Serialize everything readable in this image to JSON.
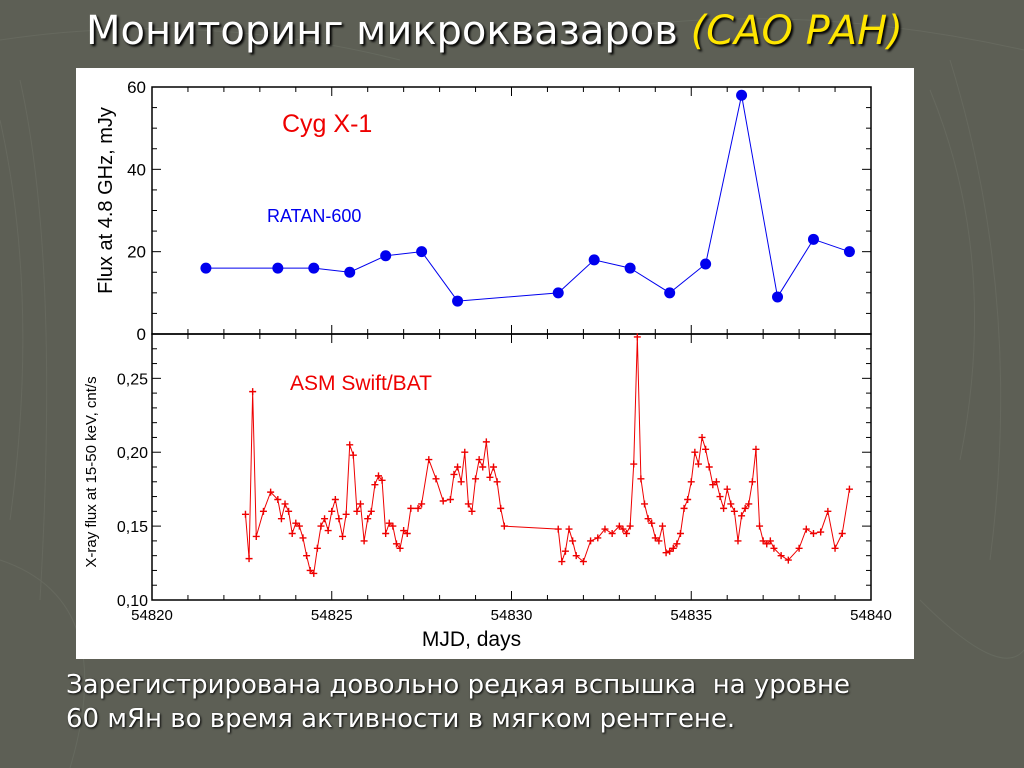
{
  "slide": {
    "title": "Мониторинг микроквазаров",
    "title_org": "(САО РАН)",
    "caption_lines": [
      "Зарегистрирована довольно редкая вспышка  на уровне",
      "60 мЯн во время активности в мягком рентгене."
    ]
  },
  "colors": {
    "background": "#5d5f55",
    "title": "#ffffff",
    "title_org": "#ffe600",
    "radio_series": "#0000ee",
    "xray_series": "#ee0000",
    "source_label": "#ee0000"
  },
  "chart_data": [
    {
      "type": "line",
      "panel": "top",
      "source_label": "Cyg X-1",
      "ylabel": "Flux at 4.8 GHz, mJy",
      "ylim": [
        0,
        60
      ],
      "yticks": [
        0,
        20,
        40,
        60
      ],
      "ytick_labels": [
        "0",
        "20",
        "40",
        "60"
      ],
      "xlim": [
        54820,
        54840
      ],
      "grid": false,
      "series": [
        {
          "name": "RATAN-600",
          "marker": "filled-circle",
          "x": [
            54821.5,
            54823.5,
            54824.5,
            54825.5,
            54826.5,
            54827.5,
            54828.5,
            54831.3,
            54832.3,
            54833.3,
            54834.4,
            54835.4,
            54836.4,
            54837.4,
            54838.4,
            54839.4
          ],
          "y": [
            16,
            16,
            16,
            15,
            19,
            20,
            8,
            10,
            18,
            16,
            10,
            17,
            58,
            9,
            23,
            20
          ]
        }
      ]
    },
    {
      "type": "line",
      "panel": "bottom",
      "ylabel": "X-ray flux at 15-50 keV, cnt/s",
      "xlabel": "MJD, days",
      "ylim": [
        0.1,
        0.28
      ],
      "yticks": [
        0.1,
        0.15,
        0.2,
        0.25
      ],
      "ytick_labels": [
        "0,10",
        "0,15",
        "0,20",
        "0,25"
      ],
      "xlim": [
        54820,
        54840
      ],
      "xticks": [
        54820,
        54825,
        54830,
        54835,
        54840
      ],
      "xtick_labels": [
        "54820",
        "54825",
        "54830",
        "54835",
        "54840"
      ],
      "grid": false,
      "series": [
        {
          "name": "ASM Swift/BAT",
          "marker": "plus",
          "x": [
            54822.6,
            54822.7,
            54822.8,
            54822.9,
            54823.1,
            54823.3,
            54823.5,
            54823.6,
            54823.7,
            54823.8,
            54823.9,
            54824.0,
            54824.1,
            54824.2,
            54824.3,
            54824.4,
            54824.5,
            54824.6,
            54824.7,
            54824.8,
            54824.9,
            54825.0,
            54825.1,
            54825.2,
            54825.3,
            54825.4,
            54825.5,
            54825.6,
            54825.7,
            54825.8,
            54825.9,
            54826.0,
            54826.1,
            54826.2,
            54826.3,
            54826.4,
            54826.5,
            54826.6,
            54826.7,
            54826.8,
            54826.9,
            54827.0,
            54827.1,
            54827.2,
            54827.4,
            54827.5,
            54827.7,
            54827.9,
            54828.1,
            54828.3,
            54828.4,
            54828.5,
            54828.6,
            54828.7,
            54828.8,
            54828.9,
            54829.0,
            54829.1,
            54829.2,
            54829.3,
            54829.4,
            54829.5,
            54829.6,
            54829.7,
            54829.8,
            54831.3,
            54831.4,
            54831.5,
            54831.6,
            54831.7,
            54831.8,
            54832.0,
            54832.2,
            54832.4,
            54832.6,
            54832.8,
            54833.0,
            54833.1,
            54833.2,
            54833.3,
            54833.4,
            54833.5,
            54833.6,
            54833.7,
            54833.8,
            54833.9,
            54834.0,
            54834.1,
            54834.2,
            54834.3,
            54834.4,
            54834.5,
            54834.6,
            54834.7,
            54834.8,
            54834.9,
            54835.0,
            54835.1,
            54835.2,
            54835.3,
            54835.4,
            54835.5,
            54835.6,
            54835.7,
            54835.8,
            54835.9,
            54836.0,
            54836.1,
            54836.2,
            54836.3,
            54836.4,
            54836.5,
            54836.6,
            54836.7,
            54836.8,
            54836.9,
            54837.0,
            54837.1,
            54837.2,
            54837.3,
            54837.5,
            54837.7,
            54838.0,
            54838.2,
            54838.4,
            54838.6,
            54838.8,
            54839.0,
            54839.2,
            54839.4
          ],
          "y": [
            0.158,
            0.128,
            0.241,
            0.143,
            0.16,
            0.173,
            0.168,
            0.155,
            0.165,
            0.16,
            0.145,
            0.152,
            0.15,
            0.142,
            0.13,
            0.12,
            0.118,
            0.135,
            0.15,
            0.155,
            0.147,
            0.16,
            0.168,
            0.155,
            0.143,
            0.158,
            0.205,
            0.198,
            0.16,
            0.165,
            0.14,
            0.155,
            0.16,
            0.178,
            0.184,
            0.181,
            0.145,
            0.152,
            0.15,
            0.138,
            0.135,
            0.147,
            0.145,
            0.162,
            0.162,
            0.165,
            0.195,
            0.182,
            0.167,
            0.168,
            0.185,
            0.19,
            0.18,
            0.2,
            0.165,
            0.16,
            0.182,
            0.195,
            0.19,
            0.207,
            0.183,
            0.19,
            0.18,
            0.162,
            0.15,
            0.148,
            0.126,
            0.133,
            0.148,
            0.14,
            0.13,
            0.126,
            0.14,
            0.142,
            0.148,
            0.145,
            0.15,
            0.148,
            0.145,
            0.15,
            0.192,
            0.278,
            0.182,
            0.165,
            0.155,
            0.152,
            0.142,
            0.14,
            0.15,
            0.132,
            0.133,
            0.135,
            0.138,
            0.145,
            0.162,
            0.168,
            0.18,
            0.2,
            0.192,
            0.21,
            0.202,
            0.19,
            0.178,
            0.18,
            0.17,
            0.162,
            0.175,
            0.165,
            0.16,
            0.14,
            0.157,
            0.162,
            0.165,
            0.18,
            0.202,
            0.15,
            0.14,
            0.138,
            0.14,
            0.135,
            0.13,
            0.127,
            0.135,
            0.148,
            0.145,
            0.146,
            0.16,
            0.135,
            0.145,
            0.175
          ]
        }
      ]
    }
  ]
}
